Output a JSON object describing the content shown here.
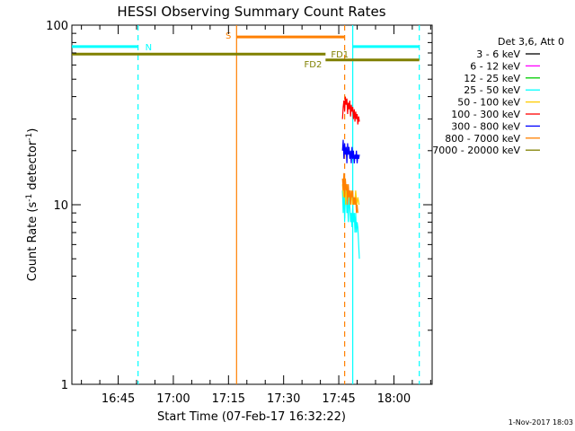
{
  "chart_data": {
    "type": "line",
    "title": "HESSI Observing Summary Count Rates",
    "xlabel": "Start Time (07-Feb-17 16:32:22)",
    "ylabel_main": "Count Rate (s",
    "ylabel_sup1": "-1",
    "ylabel_mid": " detector",
    "ylabel_sup2": "-1",
    "ylabel_end": ")",
    "y_scale": "log",
    "ylim": [
      1,
      100
    ],
    "y_ticks": [
      "1",
      "10",
      "100"
    ],
    "xlim_minutes": [
      32.4,
      130.4
    ],
    "x_ticks": [
      {
        "m": 45,
        "label": "16:45"
      },
      {
        "m": 60,
        "label": "17:00"
      },
      {
        "m": 75,
        "label": "17:15"
      },
      {
        "m": 90,
        "label": "17:30"
      },
      {
        "m": 105,
        "label": "17:45"
      },
      {
        "m": 120,
        "label": "18:00"
      }
    ],
    "legend_title": "Det 3,6, Att 0",
    "legend_position": "top-right",
    "series": [
      {
        "name": "3 - 6 keV",
        "color": "#000000",
        "x": [],
        "y": []
      },
      {
        "name": "6 - 12 keV",
        "color": "#ff00ff",
        "x": [],
        "y": []
      },
      {
        "name": "12 - 25 keV",
        "color": "#00cc00",
        "x": [],
        "y": []
      },
      {
        "name": "25 - 50 keV",
        "color": "#00ffff",
        "x": [
          106.0,
          106.2,
          106.4,
          106.6,
          106.8,
          107.0,
          107.2,
          107.4,
          107.6,
          107.8,
          108.0,
          108.2,
          108.4,
          108.6,
          108.8,
          109.0,
          109.2,
          109.4,
          109.6,
          109.8,
          110.0,
          110.2,
          110.4,
          110.6
        ],
        "y": [
          12,
          9,
          13,
          8,
          11,
          12,
          9,
          10,
          8,
          11,
          10,
          8,
          9,
          7.5,
          10,
          8,
          9,
          7,
          9,
          7,
          8,
          7.5,
          6,
          5
        ]
      },
      {
        "name": "50 - 100 keV",
        "color": "#ffcc00",
        "x": [
          106.0,
          106.3,
          106.6,
          106.9,
          107.2,
          107.5,
          107.8,
          108.1,
          108.4,
          108.7,
          109.0,
          109.3,
          109.6,
          109.9,
          110.2,
          110.5
        ],
        "y": [
          13,
          11,
          14,
          10,
          13,
          11,
          12,
          10,
          12,
          10,
          11,
          10,
          12,
          10,
          11,
          10
        ]
      },
      {
        "name": "100 - 300 keV",
        "color": "#ff0000",
        "x": [
          106.0,
          106.2,
          106.4,
          106.6,
          106.8,
          107.0,
          107.2,
          107.4,
          107.6,
          107.8,
          108.0,
          108.2,
          108.4,
          108.6,
          108.8,
          109.0,
          109.2,
          109.4,
          109.6,
          109.8,
          110.0,
          110.2,
          110.4,
          110.6
        ],
        "y": [
          30,
          35,
          38,
          33,
          40,
          36,
          39,
          32,
          37,
          34,
          38,
          31,
          36,
          33,
          35,
          30,
          34,
          29,
          33,
          30,
          32,
          28,
          31,
          29
        ]
      },
      {
        "name": "300 - 800 keV",
        "color": "#0000ff",
        "x": [
          106.0,
          106.2,
          106.4,
          106.6,
          106.8,
          107.0,
          107.2,
          107.4,
          107.6,
          107.8,
          108.0,
          108.2,
          108.4,
          108.6,
          108.8,
          109.0,
          109.2,
          109.4,
          109.6,
          109.8,
          110.0,
          110.2,
          110.4,
          110.6
        ],
        "y": [
          20,
          23,
          18,
          22,
          19,
          21,
          17,
          22,
          19,
          21,
          18,
          20,
          17,
          21,
          18,
          20,
          17,
          19,
          18,
          20,
          17,
          19,
          18,
          19
        ]
      },
      {
        "name": "800 - 7000 keV",
        "color": "#ff8000",
        "x": [
          106.0,
          106.2,
          106.4,
          106.6,
          106.8,
          107.0,
          107.2,
          107.4,
          107.6,
          107.8,
          108.0,
          108.2,
          108.4,
          108.6,
          108.8,
          109.0,
          109.2,
          109.4,
          109.6,
          109.8,
          110.0,
          110.2
        ],
        "y": [
          14,
          12,
          15,
          11,
          14,
          12,
          13,
          10,
          13,
          11,
          12,
          10,
          12,
          11,
          12,
          10,
          11,
          10,
          11,
          9,
          10,
          9
        ]
      },
      {
        "name": "7000 - 20000 keV",
        "color": "#808000",
        "x": [],
        "y": []
      }
    ],
    "annotations": [
      {
        "label": "N",
        "color": "#00ffff",
        "x_start": 32.4,
        "x_end": 50.4,
        "y": 76
      },
      {
        "label": "S",
        "color": "#ff8000",
        "x_start": 77.2,
        "x_end": 106.6,
        "y": 86
      },
      {
        "label": "FD1",
        "color": "#808000",
        "x_start": 32.4,
        "x_end": 101.4,
        "y": 69
      },
      {
        "label": "FD2",
        "color": "#808000",
        "x_start": 101.4,
        "x_end": 126.9,
        "y": 64
      },
      {
        "label": "",
        "color": "#00ffff",
        "x_start": 108.8,
        "x_end": 126.9,
        "y": 76
      }
    ],
    "vlines": [
      {
        "x": 50.4,
        "color": "#00ffff",
        "dashed": true
      },
      {
        "x": 77.2,
        "color": "#ff8000",
        "dashed": false
      },
      {
        "x": 106.6,
        "color": "#ff8000",
        "dashed": true
      },
      {
        "x": 108.8,
        "color": "#00ffff",
        "dashed": false
      },
      {
        "x": 126.9,
        "color": "#00ffff",
        "dashed": true
      }
    ]
  },
  "footer": "1-Nov-2017 18:03"
}
